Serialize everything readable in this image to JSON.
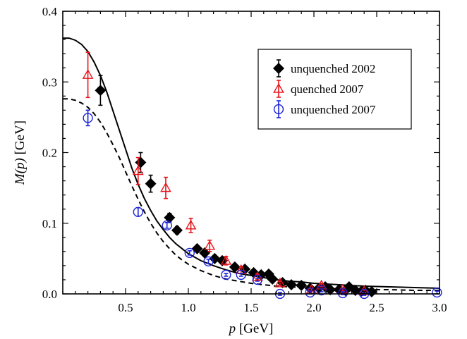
{
  "chart_data": {
    "type": "scatter",
    "xlabel": {
      "italic": "p",
      "rest": " [GeV]"
    },
    "ylabel": {
      "italic": "M(p)",
      "rest": " [GeV]"
    },
    "xlim": [
      0,
      3.0
    ],
    "ylim": [
      0,
      0.4
    ],
    "x_ticks": [
      "0.5",
      "1.0",
      "1.5",
      "2.0",
      "2.5",
      "3.0"
    ],
    "y_ticks": [
      "0.0",
      "0.1",
      "0.2",
      "0.3",
      "0.4"
    ],
    "x_tick_values": [
      0.5,
      1.0,
      1.5,
      2.0,
      2.5,
      3.0
    ],
    "y_tick_values": [
      0.0,
      0.1,
      0.2,
      0.3,
      0.4
    ],
    "x_minor_step": 0.1,
    "y_minor_step": 0.02,
    "grid": false,
    "legend_position": "top-right",
    "series": [
      {
        "name": "unquenched 2002",
        "marker": "filled-diamond",
        "color": "#000000",
        "points": [
          [
            0.3,
            0.288,
            0.021
          ],
          [
            0.62,
            0.186,
            0.014
          ],
          [
            0.7,
            0.156,
            0.012
          ],
          [
            0.85,
            0.108,
            0.006
          ],
          [
            0.91,
            0.09,
            0.005
          ],
          [
            1.07,
            0.064,
            0.004
          ],
          [
            1.13,
            0.058,
            0.004
          ],
          [
            1.21,
            0.05,
            0.003
          ],
          [
            1.27,
            0.047,
            0.003
          ],
          [
            1.37,
            0.038,
            0.003
          ],
          [
            1.45,
            0.035,
            0.003
          ],
          [
            1.52,
            0.03,
            0.002
          ],
          [
            1.58,
            0.027,
            0.002
          ],
          [
            1.64,
            0.028,
            0.002
          ],
          [
            1.67,
            0.021,
            0.002
          ],
          [
            1.75,
            0.016,
            0.002
          ],
          [
            1.82,
            0.013,
            0.002
          ],
          [
            1.9,
            0.012,
            0.002
          ],
          [
            1.97,
            0.008,
            0.002
          ],
          [
            2.04,
            0.008,
            0.002
          ],
          [
            2.09,
            0.01,
            0.002
          ],
          [
            2.13,
            0.006,
            0.002
          ],
          [
            2.2,
            0.006,
            0.002
          ],
          [
            2.25,
            0.005,
            0.002
          ],
          [
            2.28,
            0.01,
            0.002
          ],
          [
            2.33,
            0.005,
            0.002
          ],
          [
            2.38,
            0.004,
            0.002
          ],
          [
            2.41,
            0.005,
            0.002
          ],
          [
            2.46,
            0.003,
            0.002
          ]
        ]
      },
      {
        "name": "quenched 2007",
        "marker": "open-triangle",
        "color": "#e8151b",
        "points": [
          [
            0.2,
            0.31,
            0.032
          ],
          [
            0.6,
            0.174,
            0.019
          ],
          [
            0.82,
            0.15,
            0.015
          ],
          [
            1.02,
            0.097,
            0.01
          ],
          [
            1.17,
            0.068,
            0.008
          ],
          [
            1.3,
            0.047,
            0.006
          ],
          [
            1.42,
            0.034,
            0.005
          ],
          [
            1.55,
            0.024,
            0.004
          ],
          [
            1.73,
            0.015,
            0.003
          ],
          [
            1.98,
            0.006,
            0.002
          ],
          [
            2.06,
            0.012,
            0.002
          ],
          [
            2.23,
            0.006,
            0.002
          ],
          [
            2.4,
            0.004,
            0.002
          ]
        ]
      },
      {
        "name": "unquenched 2007",
        "marker": "open-circle",
        "color": "#1a23d6",
        "points": [
          [
            0.2,
            0.249,
            0.011
          ],
          [
            0.6,
            0.116,
            0.006
          ],
          [
            0.83,
            0.097,
            0.004
          ],
          [
            1.01,
            0.058,
            0.003
          ],
          [
            1.16,
            0.046,
            0.003
          ],
          [
            1.3,
            0.027,
            0.002
          ],
          [
            1.42,
            0.027,
            0.002
          ],
          [
            1.55,
            0.02,
            0.002
          ],
          [
            1.73,
            0.0,
            0.002
          ],
          [
            1.97,
            0.002,
            0.002
          ],
          [
            2.06,
            0.005,
            0.002
          ],
          [
            2.23,
            0.001,
            0.002
          ],
          [
            2.4,
            0.0,
            0.002
          ],
          [
            2.98,
            0.002,
            0.002
          ]
        ]
      }
    ],
    "curves": [
      {
        "style": "solid",
        "color": "#000000",
        "points": [
          [
            0.0,
            0.362
          ],
          [
            0.05,
            0.362
          ],
          [
            0.1,
            0.359
          ],
          [
            0.15,
            0.353
          ],
          [
            0.2,
            0.343
          ],
          [
            0.25,
            0.328
          ],
          [
            0.3,
            0.309
          ],
          [
            0.35,
            0.286
          ],
          [
            0.4,
            0.259
          ],
          [
            0.45,
            0.232
          ],
          [
            0.5,
            0.205
          ],
          [
            0.55,
            0.178
          ],
          [
            0.6,
            0.155
          ],
          [
            0.65,
            0.135
          ],
          [
            0.7,
            0.118
          ],
          [
            0.75,
            0.103
          ],
          [
            0.8,
            0.091
          ],
          [
            0.85,
            0.08
          ],
          [
            0.9,
            0.071
          ],
          [
            0.95,
            0.064
          ],
          [
            1.0,
            0.057
          ],
          [
            1.1,
            0.047
          ],
          [
            1.2,
            0.04
          ],
          [
            1.3,
            0.034
          ],
          [
            1.4,
            0.029
          ],
          [
            1.5,
            0.026
          ],
          [
            1.6,
            0.023
          ],
          [
            1.7,
            0.02
          ],
          [
            1.8,
            0.018
          ],
          [
            1.9,
            0.017
          ],
          [
            2.0,
            0.015
          ],
          [
            2.2,
            0.013
          ],
          [
            2.4,
            0.011
          ],
          [
            2.6,
            0.01
          ],
          [
            2.8,
            0.009
          ],
          [
            3.0,
            0.008
          ]
        ]
      },
      {
        "style": "dashed",
        "color": "#000000",
        "points": [
          [
            0.0,
            0.276
          ],
          [
            0.05,
            0.276
          ],
          [
            0.1,
            0.274
          ],
          [
            0.15,
            0.27
          ],
          [
            0.2,
            0.264
          ],
          [
            0.25,
            0.255
          ],
          [
            0.3,
            0.243
          ],
          [
            0.35,
            0.228
          ],
          [
            0.4,
            0.211
          ],
          [
            0.45,
            0.193
          ],
          [
            0.5,
            0.173
          ],
          [
            0.55,
            0.153
          ],
          [
            0.6,
            0.134
          ],
          [
            0.65,
            0.116
          ],
          [
            0.7,
            0.1
          ],
          [
            0.75,
            0.086
          ],
          [
            0.8,
            0.074
          ],
          [
            0.85,
            0.064
          ],
          [
            0.9,
            0.055
          ],
          [
            0.95,
            0.048
          ],
          [
            1.0,
            0.042
          ],
          [
            1.1,
            0.033
          ],
          [
            1.2,
            0.026
          ],
          [
            1.3,
            0.021
          ],
          [
            1.4,
            0.018
          ],
          [
            1.5,
            0.015
          ],
          [
            1.6,
            0.013
          ],
          [
            1.7,
            0.011
          ],
          [
            1.8,
            0.01
          ],
          [
            1.9,
            0.009
          ],
          [
            2.0,
            0.008
          ],
          [
            2.2,
            0.007
          ],
          [
            2.4,
            0.006
          ],
          [
            2.6,
            0.006
          ],
          [
            2.8,
            0.005
          ],
          [
            3.0,
            0.005
          ]
        ]
      }
    ]
  }
}
